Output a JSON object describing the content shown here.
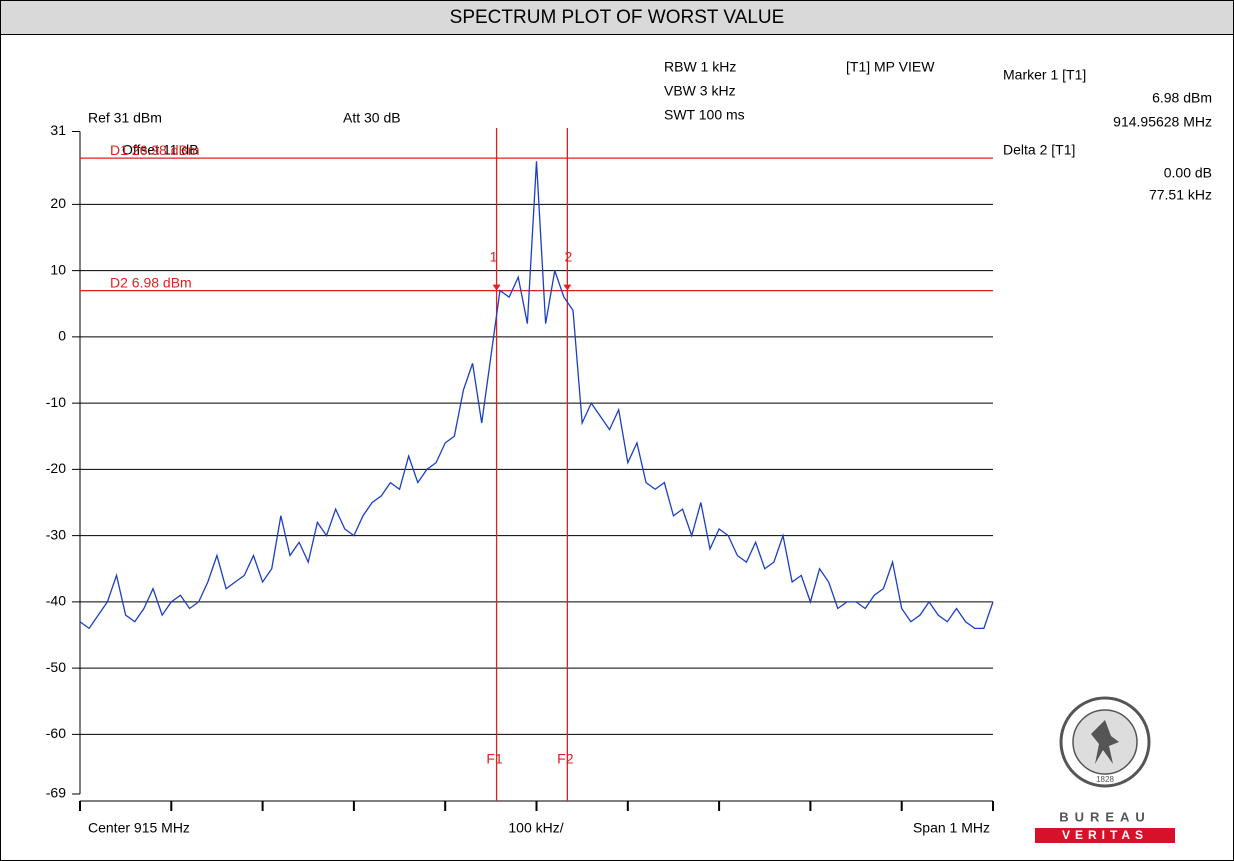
{
  "chart_data": {
    "type": "line",
    "title": "SPECTRUM PLOT OF WORST VALUE",
    "annotations": [
      "Ref 31 dBm",
      "Att  30 dB",
      "RBW 1 kHz",
      "VBW 3 kHz",
      "SWT 100 ms",
      "[T1] MP VIEW",
      "Marker 1 [T1]",
      "6.98 dBm",
      "914.95628 MHz",
      "Delta 2 [T1]",
      "0.00 dB",
      "77.51 kHz",
      "Offset 11 dB",
      "Center 915 MHz",
      "100 kHz/",
      "Span 1 MHz"
    ],
    "logo": [
      "BUREAU",
      "VERITAS",
      "1828"
    ],
    "xlim": [
      914.5,
      915.5
    ],
    "xticks": [
      914.5,
      914.6,
      914.7,
      914.8,
      914.9,
      915.0,
      915.1,
      915.2,
      915.3,
      915.4,
      915.5
    ],
    "ylim": [
      -69,
      31
    ],
    "yticks": [
      31,
      20,
      10,
      0,
      -10,
      -20,
      -30,
      -40,
      -50,
      -60,
      -69
    ],
    "grid": true,
    "x": [
      914.5,
      914.51,
      914.52,
      914.53,
      914.54,
      914.55,
      914.56,
      914.57,
      914.58,
      914.59,
      914.6,
      914.61,
      914.62,
      914.63,
      914.64,
      914.65,
      914.66,
      914.67,
      914.68,
      914.69,
      914.7,
      914.71,
      914.72,
      914.73,
      914.74,
      914.75,
      914.76,
      914.77,
      914.78,
      914.79,
      914.8,
      914.81,
      914.82,
      914.83,
      914.84,
      914.85,
      914.86,
      914.87,
      914.88,
      914.89,
      914.9,
      914.91,
      914.92,
      914.93,
      914.94,
      914.95,
      914.96,
      914.97,
      914.98,
      914.99,
      915.0,
      915.01,
      915.02,
      915.03,
      915.04,
      915.05,
      915.06,
      915.07,
      915.08,
      915.09,
      915.1,
      915.11,
      915.12,
      915.13,
      915.14,
      915.15,
      915.16,
      915.17,
      915.18,
      915.19,
      915.2,
      915.21,
      915.22,
      915.23,
      915.24,
      915.25,
      915.26,
      915.27,
      915.28,
      915.29,
      915.3,
      915.31,
      915.32,
      915.33,
      915.34,
      915.35,
      915.36,
      915.37,
      915.38,
      915.39,
      915.4,
      915.41,
      915.42,
      915.43,
      915.44,
      915.45,
      915.46,
      915.47,
      915.48,
      915.49,
      915.5
    ],
    "series": [
      {
        "color": "#1a3fc4",
        "values": [
          -43,
          -44,
          -42,
          -40,
          -36,
          -42,
          -43,
          -41,
          -38,
          -42,
          -40,
          -39,
          -41,
          -40,
          -37,
          -33,
          -38,
          -37,
          -36,
          -33,
          -37,
          -35,
          -27,
          -33,
          -31,
          -34,
          -28,
          -30,
          -26,
          -29,
          -30,
          -27,
          -25,
          -24,
          -22,
          -23,
          -18,
          -22,
          -20,
          -19,
          -16,
          -15,
          -8,
          -4,
          -13,
          -3,
          7,
          6,
          9,
          2,
          26.5,
          2,
          10,
          6,
          4,
          -13,
          -10,
          -12,
          -14,
          -11,
          -19,
          -16,
          -22,
          -23,
          -22,
          -27,
          -26,
          -30,
          -25,
          -32,
          -29,
          -30,
          -33,
          -34,
          -31,
          -35,
          -34,
          -30,
          -37,
          -36,
          -40,
          -35,
          -37,
          -41,
          -40,
          -40,
          -41,
          -39,
          -38,
          -34,
          -41,
          -43,
          -42,
          -40,
          -42,
          -43,
          -41,
          -43,
          -44,
          -44,
          -40
        ]
      }
    ],
    "display_lines": [
      {
        "label": "D1 26.98 dBm",
        "value": 26.98
      },
      {
        "label": "D2 6.98 dBm",
        "value": 6.98
      }
    ],
    "frequency_lines": [
      {
        "label": "F1",
        "x": 914.95628
      },
      {
        "label": "F2",
        "x": 915.03379
      }
    ],
    "markers": [
      {
        "label": "1",
        "x": 914.95628,
        "y": 6.98
      },
      {
        "label": "2",
        "x": 915.03379,
        "y": 6.98
      }
    ],
    "marker_color": "#e02020"
  }
}
